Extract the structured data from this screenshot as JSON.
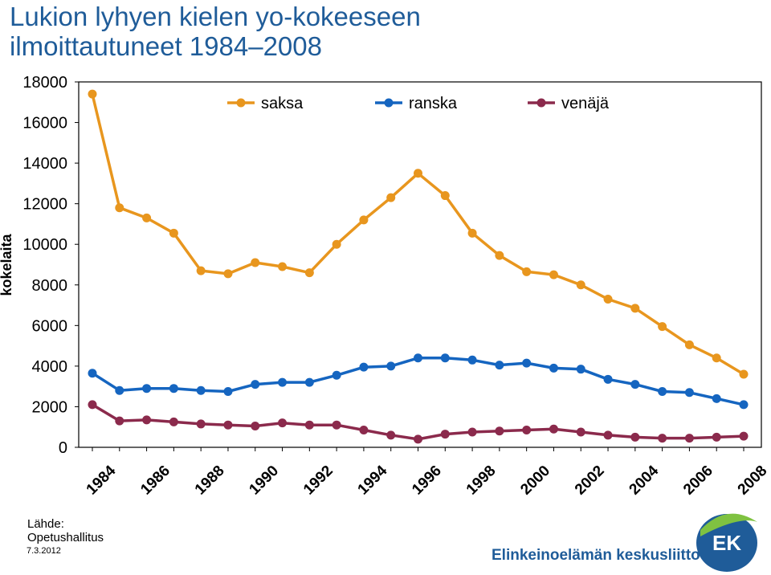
{
  "title_line1": "Lukion lyhyen kielen yo-kokeeseen",
  "title_line2": "ilmoittautuneet 1984–2008",
  "source_label": "Lähde:",
  "source_value": "Opetushallitus",
  "date": "7.3.2012",
  "brand": "Elinkeinoelämän keskusliitto",
  "logo_text": "EK",
  "chart_data": {
    "type": "line",
    "ylabel": "kokelaita",
    "xlabel": "",
    "ylim": [
      0,
      18000
    ],
    "y_ticks": [
      0,
      2000,
      4000,
      6000,
      8000,
      10000,
      12000,
      14000,
      16000,
      18000
    ],
    "x": [
      1984,
      1985,
      1986,
      1987,
      1988,
      1989,
      1990,
      1991,
      1992,
      1993,
      1994,
      1995,
      1996,
      1997,
      1998,
      1999,
      2000,
      2001,
      2002,
      2003,
      2004,
      2005,
      2006,
      2007,
      2008
    ],
    "x_tick_labels": [
      "1984",
      "1986",
      "1988",
      "1990",
      "1992",
      "1994",
      "1996",
      "1998",
      "2000",
      "2002",
      "2004",
      "2006",
      "2008"
    ],
    "legend_position": "top",
    "series": [
      {
        "name": "saksa",
        "color": "#e8961e",
        "values": [
          17400,
          11800,
          11300,
          10550,
          8700,
          8550,
          9100,
          8900,
          8600,
          10000,
          11200,
          12300,
          13500,
          12400,
          10550,
          9450,
          8650,
          8500,
          8000,
          7300,
          6850,
          5950,
          5050,
          4400,
          3600
        ]
      },
      {
        "name": "ranska",
        "color": "#1565c0",
        "values": [
          3650,
          2800,
          2900,
          2900,
          2800,
          2750,
          3100,
          3200,
          3200,
          3550,
          3950,
          4000,
          4400,
          4400,
          4300,
          4050,
          4150,
          3900,
          3850,
          3350,
          3100,
          2750,
          2700,
          2400,
          2100
        ]
      },
      {
        "name": "venäjä",
        "color": "#8b2a4c",
        "values": [
          2100,
          1300,
          1350,
          1250,
          1150,
          1100,
          1050,
          1200,
          1100,
          1100,
          850,
          600,
          400,
          650,
          750,
          800,
          850,
          900,
          750,
          600,
          500,
          450,
          450,
          500,
          550
        ]
      }
    ]
  }
}
